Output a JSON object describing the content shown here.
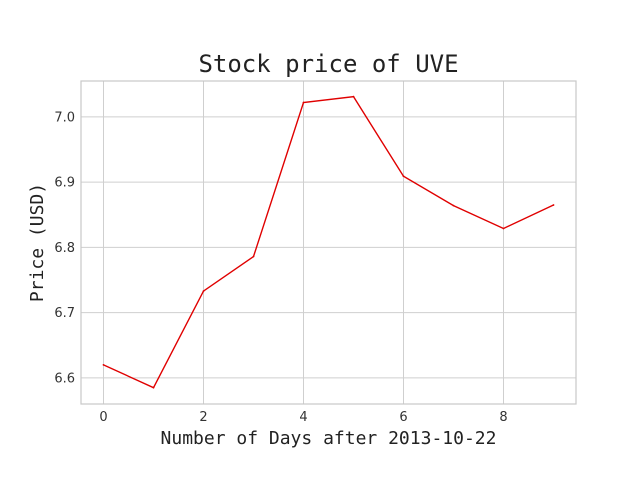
{
  "chart_data": {
    "type": "line",
    "title": "Stock price of UVE",
    "xlabel": "Number of Days after 2013-10-22",
    "ylabel": "Price (USD)",
    "x": [
      0,
      1,
      2,
      3,
      4,
      5,
      6,
      7,
      8,
      9
    ],
    "series": [
      {
        "values": [
          6.62,
          6.585,
          6.733,
          6.786,
          7.022,
          7.031,
          6.909,
          6.864,
          6.829,
          6.865
        ],
        "color": "#e00000"
      }
    ],
    "xlim": [
      -0.45,
      9.45
    ],
    "ylim": [
      6.56,
      7.055
    ],
    "xticks": [
      0,
      2,
      4,
      6,
      8
    ],
    "xtick_labels": [
      "0",
      "2",
      "4",
      "6",
      "8"
    ],
    "yticks": [
      6.6,
      6.7,
      6.8,
      6.9,
      7.0
    ],
    "ytick_labels": [
      "6.6",
      "6.7",
      "6.8",
      "6.9",
      "7.0"
    ],
    "grid": true,
    "legend": "none"
  }
}
